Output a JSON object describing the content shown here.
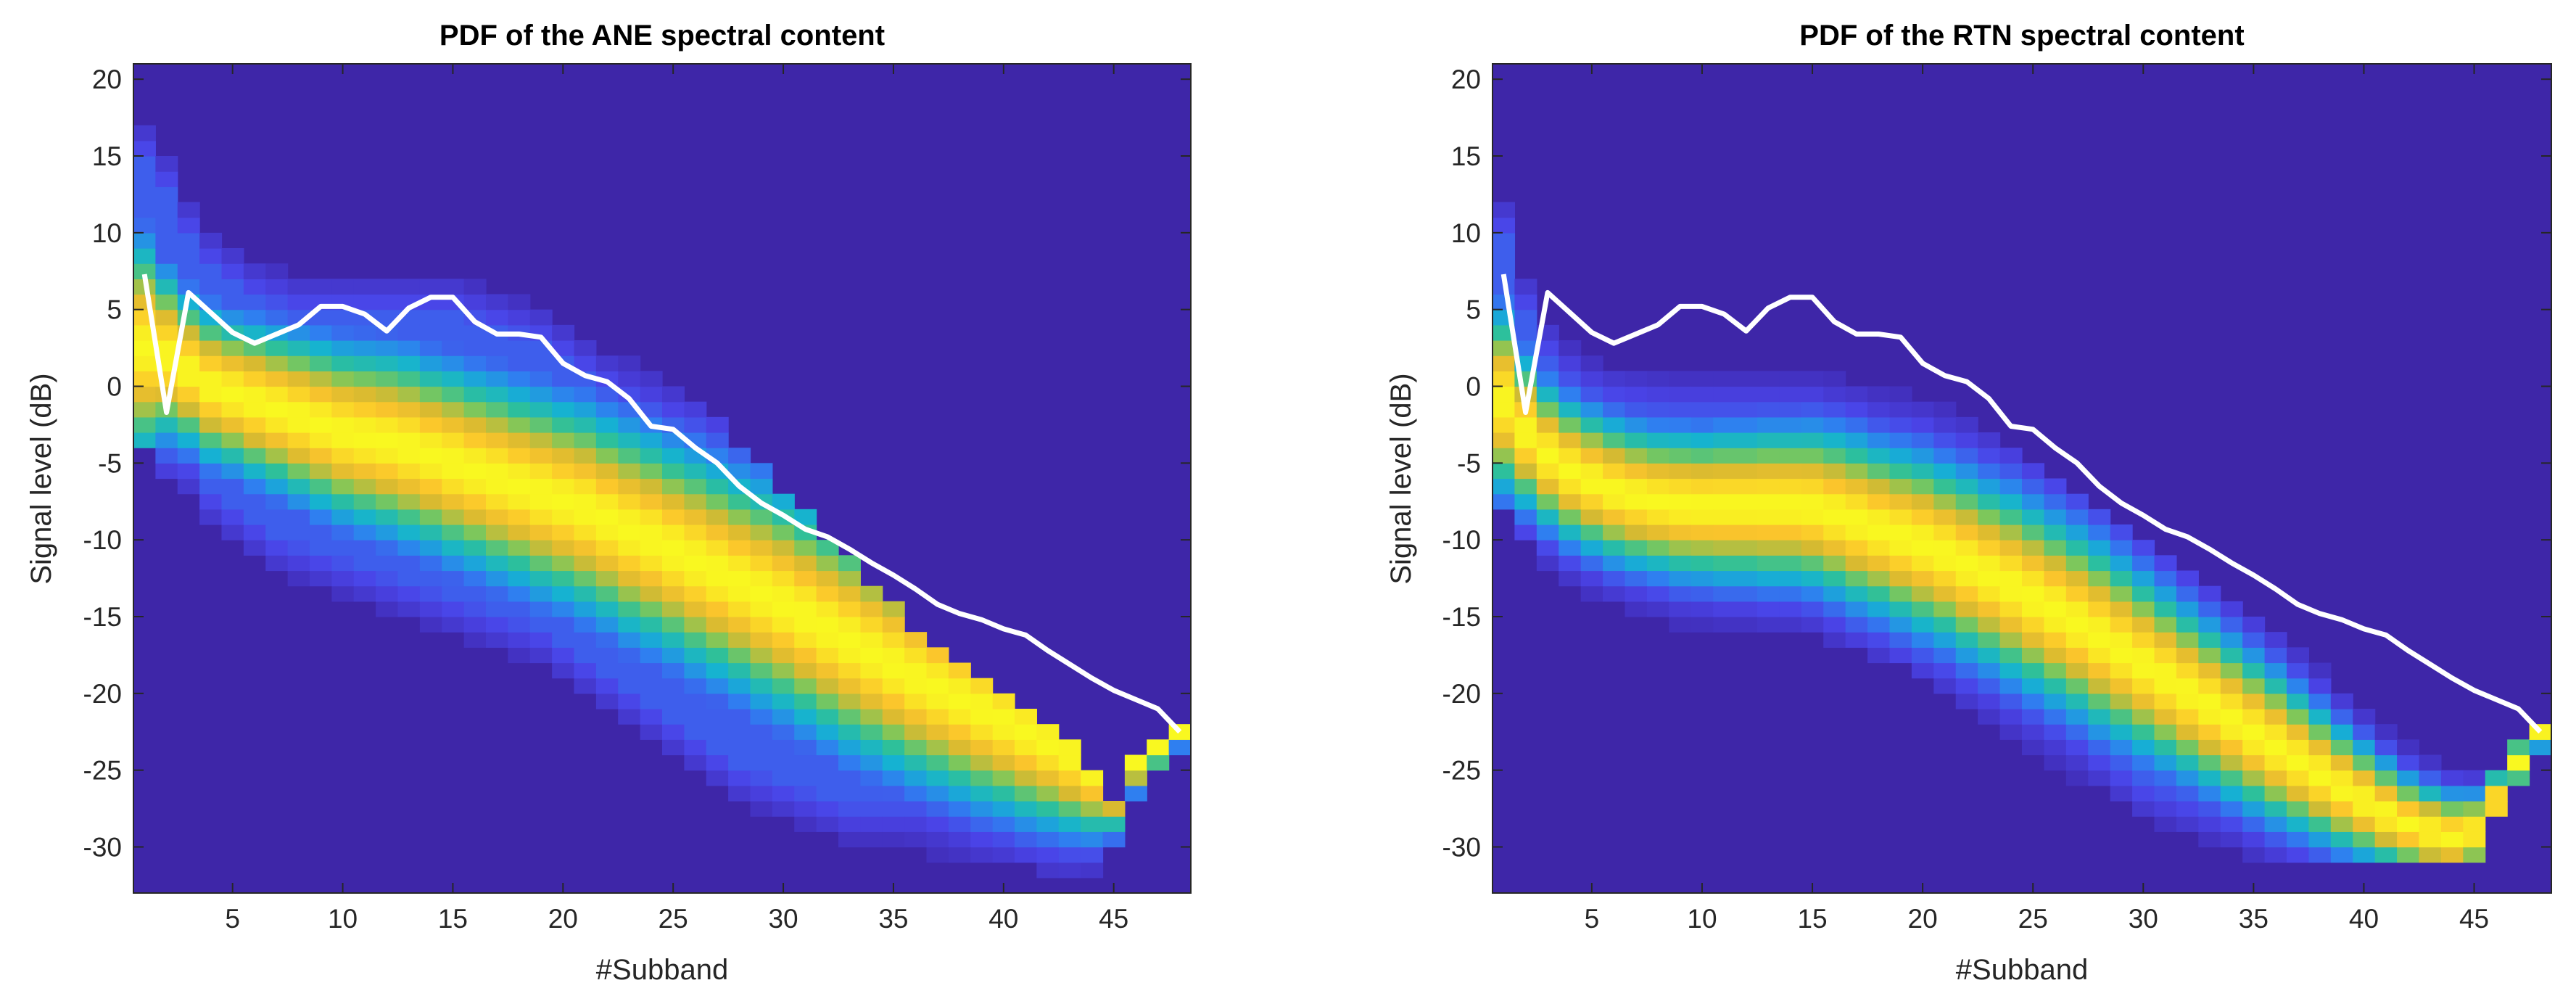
{
  "chart_data": [
    {
      "type": "heatmap",
      "title": "PDF of the ANE spectral content",
      "xlabel": "#Subband",
      "ylabel": "Signal level (dB)",
      "xlim": [
        0.5,
        48.5
      ],
      "ylim": [
        -33,
        21
      ],
      "xticks": [
        5,
        10,
        15,
        20,
        25,
        30,
        35,
        40,
        45
      ],
      "yticks": [
        20,
        15,
        10,
        5,
        0,
        -5,
        -10,
        -15,
        -20,
        -25,
        -30
      ],
      "colormap": [
        "#3e26a8",
        "#4a44e8",
        "#2f7ff0",
        "#15b2d2",
        "#2ec09a",
        "#7fc75a",
        "#d8ba30",
        "#fbc52c",
        "#f9f820"
      ],
      "band": {
        "center": [
          2.5,
          2.0,
          1.0,
          0.0,
          -0.5,
          -1.0,
          -1.5,
          -2.0,
          -2.5,
          -3.0,
          -3.3,
          -3.6,
          -4.0,
          -4.5,
          -5.0,
          -5.5,
          -6.0,
          -6.5,
          -7.0,
          -7.5,
          -8.0,
          -8.7,
          -9.4,
          -10.0,
          -10.7,
          -11.4,
          -12.1,
          -12.8,
          -13.5,
          -14.2,
          -15.0,
          -15.8,
          -16.6,
          -17.4,
          -18.2,
          -19.0,
          -19.7,
          -20.4,
          -21.1,
          -21.8,
          -22.5,
          -23.2,
          -24.0,
          -25.0,
          -26.0,
          -24.5,
          -23.5,
          -22.5
        ],
        "spread": [
          4.5,
          3.5,
          3.2,
          3.2,
          3.2,
          3.3,
          3.4,
          3.5,
          3.6,
          3.7,
          3.8,
          3.9,
          4.0,
          4.0,
          4.1,
          4.1,
          4.2,
          4.2,
          4.3,
          4.3,
          4.4,
          4.4,
          4.5,
          4.5,
          4.5,
          4.6,
          4.6,
          4.6,
          4.7,
          4.7,
          4.7,
          4.7,
          4.7,
          4.6,
          4.5,
          4.4,
          4.3,
          4.2,
          4.1,
          3.9,
          3.8,
          3.6,
          3.3,
          2.8,
          2.0,
          1.2,
          0.9,
          0.6
        ],
        "top_limit": [
          18,
          16,
          13,
          11,
          10,
          9,
          8.5,
          8,
          8,
          8,
          8,
          8,
          8,
          8,
          8,
          7.5,
          7,
          6.5,
          6,
          5,
          4,
          3,
          2,
          1,
          0,
          -1,
          -2.5,
          -4,
          -5.5,
          -7,
          -8.5,
          -10,
          -11.5,
          -13,
          -14.5,
          -16,
          -17.5,
          -18.5,
          -19.5,
          -20.5,
          -21.5,
          -22.5,
          -23.5,
          -25,
          -27,
          -24,
          -23,
          -22
        ],
        "bottom_limit": [
          -4,
          -6,
          -8,
          -10,
          -11,
          -12,
          -13,
          -13.5,
          -14,
          -14.5,
          -15,
          -15.5,
          -16,
          -16.5,
          -17,
          -17.5,
          -18,
          -18.5,
          -19,
          -20,
          -21,
          -22,
          -23,
          -24,
          -25,
          -26,
          -27,
          -28,
          -28.5,
          -29,
          -29.5,
          -30,
          -30.5,
          -30.5,
          -30.5,
          -30.5,
          -30.5,
          -30.5,
          -30.5,
          -30.5,
          -31,
          -31.5,
          -32,
          -32,
          -30,
          -27,
          -25,
          -23.5
        ]
      },
      "white_line": {
        "x": [
          1,
          2,
          3,
          4,
          5,
          6,
          7,
          8,
          9,
          10,
          11,
          12,
          13,
          14,
          15,
          16,
          17,
          18,
          19,
          20,
          21,
          22,
          23,
          24,
          25,
          26,
          27,
          28,
          29,
          30,
          31,
          32,
          33,
          34,
          35,
          36,
          37,
          38,
          39,
          40,
          41,
          42,
          43,
          44,
          45,
          46,
          47,
          48
        ],
        "y": [
          7.3,
          -1.7,
          6.1,
          4.8,
          3.5,
          2.8,
          3.4,
          4.0,
          5.2,
          5.2,
          4.7,
          3.6,
          5.1,
          5.8,
          5.8,
          4.2,
          3.4,
          3.4,
          3.2,
          1.5,
          0.7,
          0.3,
          -0.8,
          -2.6,
          -2.8,
          -4.0,
          -5.0,
          -6.5,
          -7.6,
          -8.4,
          -9.3,
          -9.8,
          -10.6,
          -11.5,
          -12.3,
          -13.2,
          -14.2,
          -14.8,
          -15.2,
          -15.8,
          -16.2,
          -17.2,
          -18.1,
          -19.0,
          -19.8,
          -20.4,
          -21.0,
          -22.5
        ]
      }
    },
    {
      "type": "heatmap",
      "title": "PDF of the RTN spectral content",
      "xlabel": "#Subband",
      "ylabel": "Signal level (dB)",
      "xlim": [
        0.5,
        48.5
      ],
      "ylim": [
        -33,
        21
      ],
      "xticks": [
        5,
        10,
        15,
        20,
        25,
        30,
        35,
        40,
        45
      ],
      "yticks": [
        20,
        15,
        10,
        5,
        0,
        -5,
        -10,
        -15,
        -20,
        -25,
        -30
      ],
      "colormap": [
        "#3e26a8",
        "#4a44e8",
        "#2f7ff0",
        "#15b2d2",
        "#2ec09a",
        "#7fc75a",
        "#d8ba30",
        "#fbc52c",
        "#f9f820"
      ],
      "band": {
        "center": [
          -1.0,
          -3.0,
          -4.5,
          -5.5,
          -6.2,
          -6.8,
          -7.2,
          -7.5,
          -7.7,
          -7.8,
          -7.8,
          -7.8,
          -7.8,
          -7.8,
          -7.9,
          -8.3,
          -8.8,
          -9.3,
          -9.8,
          -10.3,
          -10.9,
          -11.6,
          -12.3,
          -13.0,
          -13.8,
          -14.6,
          -15.4,
          -16.3,
          -17.2,
          -18.1,
          -19.0,
          -19.9,
          -20.8,
          -21.7,
          -22.6,
          -23.5,
          -24.4,
          -25.3,
          -26.2,
          -27.0,
          -27.8,
          -28.5,
          -29.0,
          -29.3,
          -29.0,
          -27.0,
          -24.5,
          -22.6
        ],
        "spread": [
          3.8,
          3.2,
          3.0,
          3.0,
          3.0,
          3.0,
          3.0,
          3.0,
          3.1,
          3.1,
          3.2,
          3.2,
          3.3,
          3.3,
          3.4,
          3.5,
          3.6,
          3.6,
          3.7,
          3.8,
          3.8,
          3.9,
          3.9,
          4.0,
          4.0,
          4.0,
          4.0,
          4.0,
          3.9,
          3.8,
          3.7,
          3.6,
          3.5,
          3.4,
          3.3,
          3.2,
          3.0,
          2.8,
          2.6,
          2.4,
          2.2,
          2.0,
          1.9,
          1.8,
          1.6,
          1.2,
          0.9,
          0.6
        ],
        "top_limit": [
          13,
          8,
          5,
          3.5,
          2.5,
          2,
          1.8,
          1.6,
          1.5,
          1.5,
          1.5,
          1.5,
          1.5,
          1.5,
          1.5,
          1,
          0.5,
          0,
          -0.5,
          -1,
          -1.5,
          -2.5,
          -3.5,
          -4.5,
          -5.5,
          -6.5,
          -7.5,
          -8.5,
          -9.5,
          -10.5,
          -11.5,
          -12.5,
          -13.5,
          -14.5,
          -15.5,
          -16.5,
          -17.5,
          -18.5,
          -19.5,
          -20.5,
          -21.5,
          -22.5,
          -23.5,
          -24.5,
          -25.5,
          -25,
          -23.5,
          -22
        ],
        "bottom_limit": [
          -8,
          -10,
          -12,
          -13,
          -14,
          -14.5,
          -15,
          -15.5,
          -16,
          -16,
          -16,
          -16,
          -16,
          -16,
          -16,
          -16.5,
          -17,
          -17.5,
          -18,
          -19,
          -20,
          -21,
          -22,
          -23,
          -24,
          -25,
          -26,
          -27,
          -28,
          -29,
          -29.5,
          -30,
          -30.5,
          -30.5,
          -30.5,
          -30.5,
          -30.5,
          -30.5,
          -30.5,
          -30.5,
          -30.5,
          -30.5,
          -30.5,
          -30.5,
          -30.5,
          -28,
          -25.5,
          -23.5
        ]
      },
      "white_line": {
        "x": [
          1,
          2,
          3,
          4,
          5,
          6,
          7,
          8,
          9,
          10,
          11,
          12,
          13,
          14,
          15,
          16,
          17,
          18,
          19,
          20,
          21,
          22,
          23,
          24,
          25,
          26,
          27,
          28,
          29,
          30,
          31,
          32,
          33,
          34,
          35,
          36,
          37,
          38,
          39,
          40,
          41,
          42,
          43,
          44,
          45,
          46,
          47,
          48
        ],
        "y": [
          7.3,
          -1.7,
          6.1,
          4.8,
          3.5,
          2.8,
          3.4,
          4.0,
          5.2,
          5.2,
          4.7,
          3.6,
          5.1,
          5.8,
          5.8,
          4.2,
          3.4,
          3.4,
          3.2,
          1.5,
          0.7,
          0.3,
          -0.8,
          -2.6,
          -2.8,
          -4.0,
          -5.0,
          -6.5,
          -7.6,
          -8.4,
          -9.3,
          -9.8,
          -10.6,
          -11.5,
          -12.3,
          -13.2,
          -14.2,
          -14.8,
          -15.2,
          -15.8,
          -16.2,
          -17.2,
          -18.1,
          -19.0,
          -19.8,
          -20.4,
          -21.0,
          -22.5
        ]
      }
    }
  ]
}
